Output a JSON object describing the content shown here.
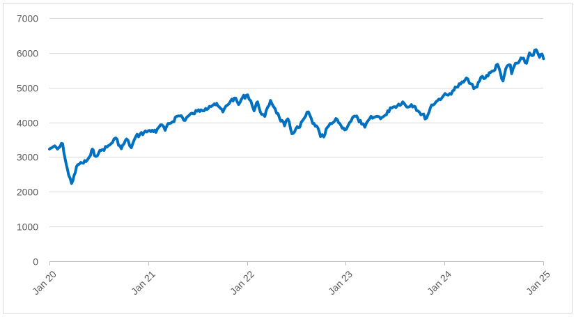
{
  "chart_data": {
    "type": "line",
    "title": "",
    "xlabel": "",
    "ylabel": "",
    "ylim": [
      0,
      7000
    ],
    "yticks": [
      0,
      1000,
      2000,
      3000,
      4000,
      5000,
      6000,
      7000
    ],
    "xticks": [
      {
        "date": "2020-01-01",
        "label": "Jan 20"
      },
      {
        "date": "2021-01-01",
        "label": "Jan 21"
      },
      {
        "date": "2022-01-01",
        "label": "Jan 22"
      },
      {
        "date": "2023-01-01",
        "label": "Jan 23"
      },
      {
        "date": "2024-01-01",
        "label": "Jan 24"
      },
      {
        "date": "2025-01-01",
        "label": "Jan 25"
      }
    ],
    "xlim": [
      "2020-01-01",
      "2025-01-01"
    ],
    "grid": "horizontal",
    "legend": "none",
    "series": [
      {
        "color": "#0070C0",
        "points": [
          [
            "2020-01-01",
            3230
          ],
          [
            "2020-01-15",
            3300
          ],
          [
            "2020-01-31",
            3230
          ],
          [
            "2020-02-19",
            3380
          ],
          [
            "2020-02-28",
            2950
          ],
          [
            "2020-03-12",
            2480
          ],
          [
            "2020-03-23",
            2240
          ],
          [
            "2020-04-01",
            2470
          ],
          [
            "2020-04-15",
            2780
          ],
          [
            "2020-05-01",
            2830
          ],
          [
            "2020-05-15",
            2870
          ],
          [
            "2020-06-01",
            3050
          ],
          [
            "2020-06-08",
            3230
          ],
          [
            "2020-06-15",
            3050
          ],
          [
            "2020-07-01",
            3110
          ],
          [
            "2020-07-15",
            3220
          ],
          [
            "2020-08-01",
            3290
          ],
          [
            "2020-08-15",
            3380
          ],
          [
            "2020-09-02",
            3550
          ],
          [
            "2020-09-23",
            3240
          ],
          [
            "2020-10-12",
            3520
          ],
          [
            "2020-10-30",
            3270
          ],
          [
            "2020-11-15",
            3580
          ],
          [
            "2020-12-01",
            3660
          ],
          [
            "2020-12-31",
            3750
          ],
          [
            "2021-01-15",
            3770
          ],
          [
            "2021-01-29",
            3710
          ],
          [
            "2021-02-15",
            3930
          ],
          [
            "2021-03-04",
            3770
          ],
          [
            "2021-03-15",
            3970
          ],
          [
            "2021-04-01",
            4020
          ],
          [
            "2021-04-15",
            4170
          ],
          [
            "2021-05-03",
            4190
          ],
          [
            "2021-05-12",
            4060
          ],
          [
            "2021-06-01",
            4200
          ],
          [
            "2021-06-15",
            4250
          ],
          [
            "2021-07-01",
            4320
          ],
          [
            "2021-07-15",
            4360
          ],
          [
            "2021-08-01",
            4400
          ],
          [
            "2021-08-15",
            4460
          ],
          [
            "2021-09-02",
            4530
          ],
          [
            "2021-09-15",
            4470
          ],
          [
            "2021-10-04",
            4300
          ],
          [
            "2021-10-15",
            4470
          ],
          [
            "2021-11-01",
            4610
          ],
          [
            "2021-11-15",
            4700
          ],
          [
            "2021-12-01",
            4510
          ],
          [
            "2021-12-15",
            4710
          ],
          [
            "2022-01-03",
            4790
          ],
          [
            "2022-01-15",
            4620
          ],
          [
            "2022-01-27",
            4330
          ],
          [
            "2022-02-09",
            4590
          ],
          [
            "2022-02-24",
            4230
          ],
          [
            "2022-03-08",
            4170
          ],
          [
            "2022-03-29",
            4630
          ],
          [
            "2022-04-15",
            4390
          ],
          [
            "2022-05-01",
            4130
          ],
          [
            "2022-05-20",
            3900
          ],
          [
            "2022-06-01",
            4100
          ],
          [
            "2022-06-16",
            3670
          ],
          [
            "2022-07-01",
            3820
          ],
          [
            "2022-07-15",
            3860
          ],
          [
            "2022-08-01",
            4120
          ],
          [
            "2022-08-16",
            4300
          ],
          [
            "2022-09-01",
            3970
          ],
          [
            "2022-09-15",
            3900
          ],
          [
            "2022-09-30",
            3590
          ],
          [
            "2022-10-12",
            3580
          ],
          [
            "2022-10-25",
            3850
          ],
          [
            "2022-11-10",
            3960
          ],
          [
            "2022-12-01",
            4080
          ],
          [
            "2022-12-15",
            3900
          ],
          [
            "2022-12-28",
            3780
          ],
          [
            "2023-01-15",
            3990
          ],
          [
            "2023-02-02",
            4180
          ],
          [
            "2023-02-15",
            4110
          ],
          [
            "2023-03-01",
            3950
          ],
          [
            "2023-03-13",
            3860
          ],
          [
            "2023-03-31",
            4110
          ],
          [
            "2023-04-15",
            4140
          ],
          [
            "2023-05-01",
            4170
          ],
          [
            "2023-05-15",
            4140
          ],
          [
            "2023-06-01",
            4220
          ],
          [
            "2023-06-15",
            4420
          ],
          [
            "2023-07-01",
            4450
          ],
          [
            "2023-07-31",
            4590
          ],
          [
            "2023-08-15",
            4440
          ],
          [
            "2023-09-01",
            4510
          ],
          [
            "2023-09-15",
            4450
          ],
          [
            "2023-10-01",
            4290
          ],
          [
            "2023-10-27",
            4120
          ],
          [
            "2023-11-15",
            4500
          ],
          [
            "2023-12-01",
            4590
          ],
          [
            "2023-12-29",
            4770
          ],
          [
            "2024-01-15",
            4780
          ],
          [
            "2024-02-01",
            4910
          ],
          [
            "2024-02-15",
            5010
          ],
          [
            "2024-03-01",
            5100
          ],
          [
            "2024-03-28",
            5250
          ],
          [
            "2024-04-19",
            4970
          ],
          [
            "2024-05-01",
            5020
          ],
          [
            "2024-05-15",
            5300
          ],
          [
            "2024-06-01",
            5280
          ],
          [
            "2024-06-15",
            5430
          ],
          [
            "2024-07-01",
            5480
          ],
          [
            "2024-07-16",
            5670
          ],
          [
            "2024-08-05",
            5190
          ],
          [
            "2024-08-15",
            5540
          ],
          [
            "2024-09-01",
            5650
          ],
          [
            "2024-09-06",
            5400
          ],
          [
            "2024-09-20",
            5700
          ],
          [
            "2024-10-01",
            5710
          ],
          [
            "2024-10-15",
            5840
          ],
          [
            "2024-10-31",
            5700
          ],
          [
            "2024-11-11",
            6000
          ],
          [
            "2024-11-20",
            5920
          ],
          [
            "2024-12-06",
            6090
          ],
          [
            "2024-12-18",
            5870
          ],
          [
            "2024-12-27",
            5970
          ],
          [
            "2025-01-02",
            5830
          ]
        ]
      }
    ]
  }
}
